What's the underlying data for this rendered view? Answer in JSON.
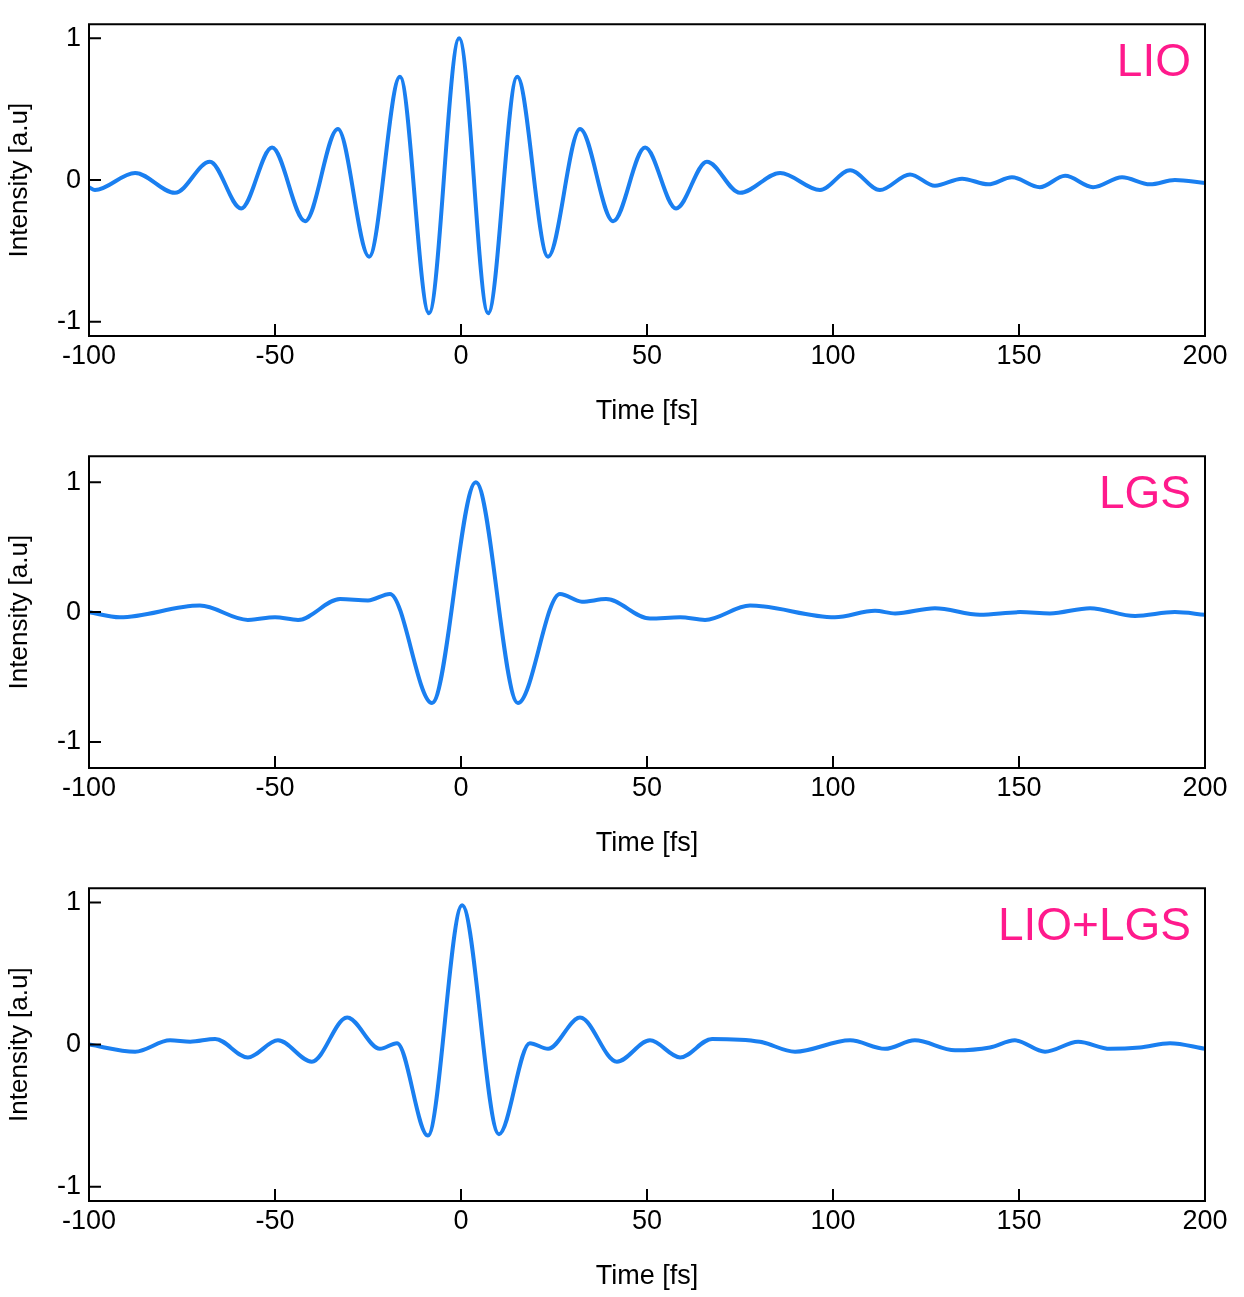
{
  "chart_data": [
    {
      "type": "line",
      "xlabel": "Time [fs]",
      "ylabel": "Intensity [a.u]",
      "annotations": [
        "LIO"
      ],
      "xlim": [
        -100,
        200
      ],
      "xticks": [
        -100,
        -50,
        0,
        50,
        100,
        150,
        200
      ],
      "ylim": [
        -1.1,
        1.1
      ],
      "yticks": [
        -1,
        0,
        1
      ],
      "grid": false,
      "marker": "none",
      "line_style": "solid",
      "series": [
        {
          "color": "#1a7ff0",
          "x": [
            -100,
            -98.4,
            -87.6,
            -76.9,
            -67.5,
            -59.1,
            -50.8,
            -41.9,
            -33.1,
            -24.7,
            -16.4,
            -8.6,
            -0.5,
            7.3,
            15.1,
            23.4,
            32.0,
            40.9,
            49.5,
            57.8,
            66.1,
            75.0,
            85.8,
            96.5,
            104.6,
            112.6,
            120.7,
            127.4,
            134.7,
            141.7,
            148.1,
            155.6,
            162.4,
            169.9,
            177.7,
            185.2,
            191.9,
            200
          ],
          "values": [
            -0.05,
            -0.07,
            0.05,
            -0.09,
            0.13,
            -0.2,
            0.23,
            -0.29,
            0.36,
            -0.54,
            0.73,
            -0.94,
            1.0,
            -0.94,
            0.73,
            -0.54,
            0.36,
            -0.29,
            0.23,
            -0.2,
            0.13,
            -0.09,
            0.05,
            -0.07,
            0.07,
            -0.07,
            0.04,
            -0.04,
            0.01,
            -0.03,
            0.02,
            -0.05,
            0.03,
            -0.05,
            0.02,
            -0.03,
            0.0,
            -0.02
          ]
        }
      ]
    },
    {
      "type": "line",
      "xlabel": "Time [fs]",
      "ylabel": "Intensity [a.u]",
      "annotations": [
        "LGS"
      ],
      "xlim": [
        -100,
        200
      ],
      "xticks": [
        -100,
        -50,
        0,
        50,
        100,
        150,
        200
      ],
      "ylim": [
        -1.2,
        1.2
      ],
      "yticks": [
        -1,
        0,
        1
      ],
      "grid": false,
      "marker": "none",
      "line_style": "solid",
      "series": [
        {
          "color": "#1a7ff0",
          "x": [
            -100,
            -91.7,
            -70.2,
            -57.3,
            -50,
            -43.8,
            -32.5,
            -25,
            -19.1,
            -7.8,
            4.0,
            15.3,
            26.6,
            32.5,
            39.0,
            50.8,
            58.9,
            65.6,
            77.7,
            100.5,
            111.3,
            116.7,
            127.4,
            139.5,
            150.3,
            158.3,
            169.1,
            181.2,
            191.9,
            200
          ],
          "values": [
            0,
            -0.04,
            0.05,
            -0.06,
            -0.04,
            -0.06,
            0.1,
            0.09,
            0.14,
            -0.7,
            1.0,
            -0.7,
            0.14,
            0.08,
            0.1,
            -0.05,
            -0.04,
            -0.06,
            0.05,
            -0.04,
            0.01,
            -0.01,
            0.03,
            -0.02,
            0.0,
            -0.01,
            0.03,
            -0.03,
            0.0,
            -0.02
          ]
        }
      ]
    },
    {
      "type": "line",
      "xlabel": "Time [fs]",
      "ylabel": "Intensity [a.u]",
      "annotations": [
        "LIO+LGS"
      ],
      "xlim": [
        -100,
        200
      ],
      "xticks": [
        -100,
        -50,
        0,
        50,
        100,
        150,
        200
      ],
      "ylim": [
        -1.1,
        1.1
      ],
      "yticks": [
        -1,
        0,
        1
      ],
      "grid": false,
      "marker": "none",
      "line_style": "solid",
      "series": [
        {
          "color": "#1a7ff0",
          "x": [
            -100,
            -87.6,
            -78.2,
            -72.8,
            -66.1,
            -57.3,
            -49.2,
            -40.1,
            -30.6,
            -21.8,
            -17.2,
            -8.9,
            0.3,
            10.2,
            18.5,
            23.4,
            32.0,
            41.9,
            50.8,
            58.9,
            67.5,
            80.4,
            89.8,
            104.6,
            114.0,
            122.0,
            132.8,
            142.2,
            148.9,
            157.0,
            165.9,
            174.5,
            182.5,
            190.6,
            200
          ],
          "values": [
            0,
            -0.05,
            0.03,
            0.02,
            0.04,
            -0.09,
            0.03,
            -0.12,
            0.19,
            -0.03,
            0.01,
            -0.64,
            0.98,
            -0.63,
            0.01,
            -0.03,
            0.19,
            -0.12,
            0.03,
            -0.09,
            0.04,
            0.02,
            -0.05,
            0.03,
            -0.03,
            0.03,
            -0.04,
            -0.02,
            0.03,
            -0.05,
            0.02,
            -0.03,
            -0.02,
            0.01,
            -0.03
          ]
        }
      ]
    }
  ]
}
